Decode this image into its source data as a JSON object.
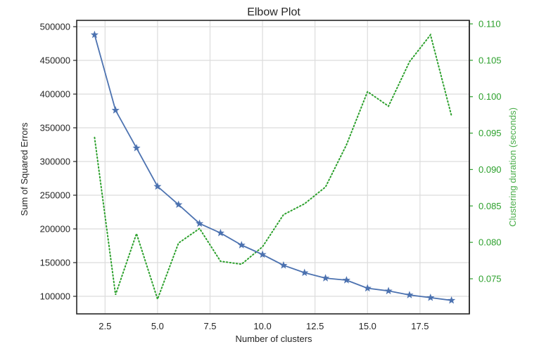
{
  "chart_data": {
    "type": "line",
    "title": "Elbow Plot",
    "xlabel": "Number of clusters",
    "ylabel": "Sum of Squared Errors",
    "y2label": "Clustering duration (seconds)",
    "x": [
      2,
      3,
      4,
      5,
      6,
      7,
      8,
      9,
      10,
      11,
      12,
      13,
      14,
      15,
      16,
      17,
      18,
      19
    ],
    "series": [
      {
        "name": "Sum of Squared Errors",
        "axis": "left",
        "style": "solid line with star markers",
        "color": "#4c72b0",
        "values": [
          488000,
          376000,
          320000,
          263000,
          236000,
          208000,
          194000,
          176000,
          162000,
          146000,
          135000,
          127000,
          124000,
          112000,
          108000,
          102000,
          98000,
          94000
        ]
      },
      {
        "name": "Clustering duration (seconds)",
        "axis": "right",
        "style": "dotted line",
        "color": "#2ca02c",
        "values": [
          0.0944,
          0.0728,
          0.0812,
          0.0722,
          0.0799,
          0.0819,
          0.0774,
          0.077,
          0.0794,
          0.0838,
          0.0853,
          0.0876,
          0.0934,
          0.1007,
          0.0987,
          0.1048,
          0.1085,
          0.0974
        ]
      }
    ],
    "xlim": [
      1.15,
      19.85
    ],
    "ylim": [
      75000,
      500000
    ],
    "y2lim": [
      0.0707,
      0.1098
    ],
    "xticks": [
      "2.5",
      "5.0",
      "7.5",
      "10.0",
      "12.5",
      "15.0",
      "17.5"
    ],
    "yticks": [
      "100000",
      "150000",
      "200000",
      "250000",
      "300000",
      "350000",
      "400000",
      "450000",
      "500000"
    ],
    "y2ticks": [
      "0.075",
      "0.080",
      "0.085",
      "0.090",
      "0.095",
      "0.100",
      "0.105",
      "0.110"
    ],
    "grid": true,
    "legend": null
  },
  "colors": {
    "primary_line": "#4c72b0",
    "secondary_line": "#2ca02c",
    "secondary_axis_text": "#2ca02c",
    "grid": "#dcdcdc",
    "frame": "#262626",
    "text": "#262626"
  }
}
